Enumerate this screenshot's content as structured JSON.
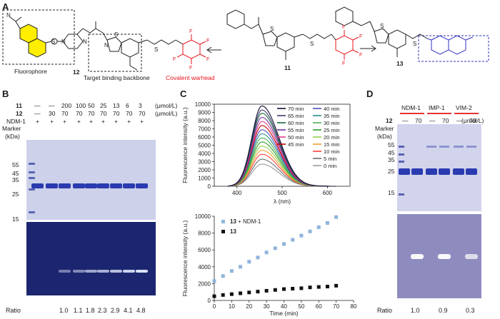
{
  "panels": {
    "a": "A",
    "b": "B",
    "c": "C",
    "d": "D"
  },
  "panel_a": {
    "fluorophore_label": "Fluorophore",
    "target_label": "Target binding backbone",
    "warhead_label": "Covalent warhead",
    "cmpd_12": "12",
    "cmpd_11": "11",
    "cmpd_13": "13",
    "warhead_color": "#e8141c",
    "fluor_color": "#ffee00",
    "coumarin_box_color": "#3030c0"
  },
  "panel_b": {
    "row_11_label": "11",
    "row_12_label": "12",
    "row_ndm_label": "NDM-1",
    "marker_label": "Marker",
    "kda_label": "(kDa)",
    "row_11_values": [
      "—",
      "—",
      "200",
      "100",
      "50",
      "25",
      "13",
      "6",
      "3"
    ],
    "row_12_values": [
      "—",
      "30",
      "70",
      "70",
      "70",
      "70",
      "70",
      "70",
      "70"
    ],
    "row_ndm_values": [
      "+",
      "+",
      "+",
      "+",
      "+",
      "+",
      "+",
      "+",
      "+"
    ],
    "unit_11": "(μmol/L)",
    "unit_12": "(μmol/L)",
    "marker_kda": [
      "55",
      "45",
      "35",
      "25",
      "15"
    ],
    "ratio_label": "Ratio",
    "ratios": [
      "1.0",
      "1.1",
      "1.8",
      "2.3",
      "2.9",
      "4.1",
      "4.8"
    ],
    "gel_color": "#cdd1ea",
    "fluor_gel_color": "#1c2670"
  },
  "panel_c_top": {
    "ylabel": "Fluorescence intensity (a.u.)",
    "xlabel": "λ (nm)",
    "legend_left": [
      "70 min",
      "65 min",
      "60 min",
      "55 min",
      "50 min",
      "45 min"
    ],
    "legend_right": [
      "40 min",
      "35 min",
      "30 min",
      "25 min",
      "20 min",
      "15 min",
      "10 min",
      "5 min",
      "0 min"
    ],
    "colors_left": [
      "#101030",
      "#3c3c6e",
      "#1a6a3a",
      "#7030a0",
      "#e04090",
      "#c00000"
    ],
    "colors_right": [
      "#5050c0",
      "#2c8c8c",
      "#4caf50",
      "#2e9a2e",
      "#90d050",
      "#f0a030",
      "#ff4040",
      "#707070",
      "#9c9c9c"
    ]
  },
  "panel_c_bottom": {
    "ylabel": "Fluorescence intensity (a.u.)",
    "xlabel": "Time (min)",
    "legend_series1": "13 + NDM-1",
    "legend_series1_bold": "13",
    "legend_series1_rest": "+  NDM-1",
    "legend_series2": "13"
  },
  "chart_data": [
    {
      "type": "line",
      "x_axis": {
        "ticks": [
          400,
          500,
          600
        ],
        "range": [
          350,
          650
        ]
      },
      "y_axis": {
        "ticks": [
          0,
          1000,
          2000,
          3000,
          4000,
          5000,
          6000,
          7000,
          8000,
          9000,
          10000
        ],
        "range": [
          0,
          10000
        ]
      },
      "peak_nm": 455,
      "series": [
        {
          "name": "70 min",
          "peak": 9800,
          "color": "#101030"
        },
        {
          "name": "65 min",
          "peak": 9300,
          "color": "#3c3c6e"
        },
        {
          "name": "60 min",
          "peak": 8900,
          "color": "#1a6a3a"
        },
        {
          "name": "55 min",
          "peak": 8400,
          "color": "#7030a0"
        },
        {
          "name": "50 min",
          "peak": 7900,
          "color": "#e04090"
        },
        {
          "name": "45 min",
          "peak": 7400,
          "color": "#c00000"
        },
        {
          "name": "40 min",
          "peak": 6900,
          "color": "#5050c0"
        },
        {
          "name": "35 min",
          "peak": 6400,
          "color": "#2c8c8c"
        },
        {
          "name": "30 min",
          "peak": 5900,
          "color": "#4caf50"
        },
        {
          "name": "25 min",
          "peak": 5400,
          "color": "#2e9a2e"
        },
        {
          "name": "20 min",
          "peak": 4900,
          "color": "#90d050"
        },
        {
          "name": "15 min",
          "peak": 4400,
          "color": "#f0a030"
        },
        {
          "name": "10 min",
          "peak": 3900,
          "color": "#ff4040"
        },
        {
          "name": "5 min",
          "peak": 3300,
          "color": "#707070"
        },
        {
          "name": "0 min",
          "peak": 2700,
          "color": "#9c9c9c"
        }
      ]
    },
    {
      "type": "scatter",
      "x_axis": {
        "ticks": [
          0,
          10,
          20,
          30,
          40,
          50,
          60,
          70,
          80
        ],
        "range": [
          0,
          80
        ]
      },
      "y_axis": {
        "ticks": [
          0,
          2000,
          4000,
          6000,
          8000,
          10000
        ],
        "range": [
          0,
          10000
        ]
      },
      "series": [
        {
          "name": "13 + NDM-1",
          "color": "#8fb4de",
          "marker": "square",
          "x": [
            0,
            5,
            10,
            15,
            20,
            25,
            30,
            35,
            40,
            45,
            50,
            55,
            60,
            65,
            70
          ],
          "y": [
            2300,
            2900,
            3500,
            4000,
            4600,
            5100,
            5700,
            6200,
            6700,
            7200,
            7700,
            8200,
            8700,
            9200,
            9900
          ]
        },
        {
          "name": "13",
          "color": "#111111",
          "marker": "square",
          "x": [
            0,
            5,
            10,
            15,
            20,
            25,
            30,
            35,
            40,
            45,
            50,
            55,
            60,
            65,
            70
          ],
          "y": [
            500,
            650,
            750,
            850,
            950,
            1050,
            1150,
            1250,
            1350,
            1400,
            1450,
            1550,
            1600,
            1650,
            1750
          ]
        }
      ]
    }
  ],
  "panel_d": {
    "enzymes": [
      "NDM-1",
      "IMP-1",
      "VIM-2"
    ],
    "row_12_label": "12",
    "conc": [
      "—",
      "70",
      "—",
      "70",
      "—",
      "70"
    ],
    "unit": "(μmol/L)",
    "marker_label": "Marker",
    "kda_label": "(kDa)",
    "marker_kda": [
      "55",
      "45",
      "35",
      "25",
      "15"
    ],
    "ratio_label": "Ratio",
    "ratios": [
      "1.0",
      "0.9",
      "0.3"
    ],
    "enzyme_underline_color": "#e33333",
    "gel_color": "#d2d4ec",
    "fluor_gel_color": "#8e8cbf"
  }
}
